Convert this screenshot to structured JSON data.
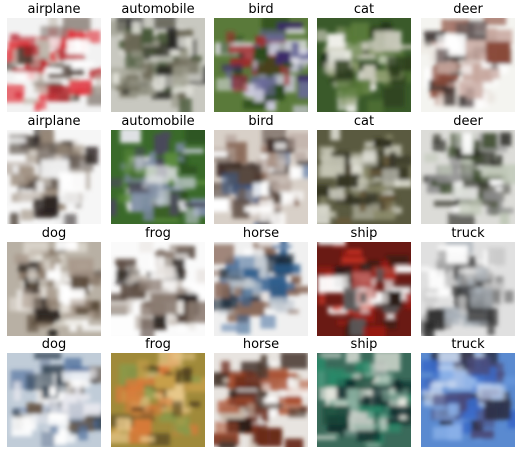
{
  "grid": {
    "rows": 4,
    "cols": 5,
    "cells": [
      {
        "label": "airplane",
        "bg": "#f2f2f2",
        "palette": [
          "#b41c24",
          "#e0303a",
          "#4a3a30",
          "#8a8078",
          "#ffffff",
          "#c0b8ac"
        ]
      },
      {
        "label": "automobile",
        "bg": "#c8c8c0",
        "palette": [
          "#3a3a32",
          "#6e6a58",
          "#9a9a8a",
          "#e8e8e0",
          "#4a5a3a",
          "#2a2a26"
        ]
      },
      {
        "label": "bird",
        "bg": "#5a7a3a",
        "palette": [
          "#3a2a6a",
          "#c8c8d8",
          "#a02a2a",
          "#2a4a1a",
          "#e8e8f0",
          "#6a6a9a"
        ]
      },
      {
        "label": "cat",
        "bg": "#3a5a2a",
        "palette": [
          "#1a2a14",
          "#f0f0ea",
          "#5a7a3a",
          "#8a9a6a",
          "#2a3a1a",
          "#c8c8b8"
        ]
      },
      {
        "label": "deer",
        "bg": "#f4f4f0",
        "palette": [
          "#2a2220",
          "#8a4a3a",
          "#ffffff",
          "#5a5050",
          "#c8a8a0",
          "#ebe6e0"
        ]
      },
      {
        "label": "airplane",
        "bg": "#f6f6f6",
        "palette": [
          "#ffffff",
          "#9a8a7a",
          "#2a2220",
          "#c8c0b8",
          "#eeeeee",
          "#6a6058"
        ]
      },
      {
        "label": "automobile",
        "bg": "#3a6a2a",
        "palette": [
          "#7a8aa0",
          "#e8e8ee",
          "#2a4a1a",
          "#5a8a3a",
          "#4a4a5a",
          "#c0c8d0"
        ]
      },
      {
        "label": "bird",
        "bg": "#d8d0c8",
        "palette": [
          "#ffffff",
          "#3a2a24",
          "#8a6a5a",
          "#3a5a8a",
          "#b8a8a0",
          "#5a4a40"
        ]
      },
      {
        "label": "cat",
        "bg": "#5a5a40",
        "palette": [
          "#2a2a1a",
          "#c8c8b8",
          "#8a8a6a",
          "#3a3a2a",
          "#e8e8e0",
          "#6a5a3a"
        ]
      },
      {
        "label": "deer",
        "bg": "#dcdcd8",
        "palette": [
          "#ffffff",
          "#3a4a2a",
          "#8a8a8a",
          "#5a5a50",
          "#c0c8b8",
          "#2a2a24"
        ]
      },
      {
        "label": "dog",
        "bg": "#b8b0a4",
        "palette": [
          "#5a4a3a",
          "#e8e4dc",
          "#2a2420",
          "#8a7a6a",
          "#ffffff",
          "#a8988a"
        ]
      },
      {
        "label": "frog",
        "bg": "#fafafa",
        "palette": [
          "#2a2420",
          "#ffffff",
          "#5a4a40",
          "#e8e4e0",
          "#8a7a70",
          "#c8c0b8"
        ]
      },
      {
        "label": "horse",
        "bg": "#f0f0f0",
        "palette": [
          "#2a5a8a",
          "#ffffff",
          "#1a2a3a",
          "#6a8ab0",
          "#c0c8d0",
          "#8a6a5a"
        ]
      },
      {
        "label": "ship",
        "bg": "#6a1a14",
        "palette": [
          "#a01a14",
          "#e8e8e8",
          "#2a1a14",
          "#d83a2a",
          "#5a5a5a",
          "#ffffff"
        ]
      },
      {
        "label": "truck",
        "bg": "#e0e0e0",
        "palette": [
          "#ffffff",
          "#4a4a4a",
          "#8a8a8a",
          "#a8b0b8",
          "#2a2a2a",
          "#c8c8c8"
        ]
      },
      {
        "label": "dog",
        "bg": "#c0ccd8",
        "palette": [
          "#4a6a9a",
          "#e8e8ee",
          "#2a3a4a",
          "#8a9ab0",
          "#ffffff",
          "#6a5a4a"
        ]
      },
      {
        "label": "frog",
        "bg": "#a08a3a",
        "palette": [
          "#c8a04a",
          "#6a5a2a",
          "#d87a3a",
          "#8a9a4a",
          "#e8c88a",
          "#4a3a1a"
        ]
      },
      {
        "label": "horse",
        "bg": "#e8e4e0",
        "palette": [
          "#2a1a14",
          "#6a2a1a",
          "#ffffff",
          "#a84a2a",
          "#c8b8a8",
          "#4a3a30"
        ]
      },
      {
        "label": "ship",
        "bg": "#3a6a5a",
        "palette": [
          "#1a4a3a",
          "#e8e8e0",
          "#2a8a6a",
          "#0a2a2a",
          "#8ab0a0",
          "#c8d0c8"
        ]
      },
      {
        "label": "truck",
        "bg": "#5a8ad0",
        "palette": [
          "#3a6ac8",
          "#8ab0e8",
          "#2a2a3a",
          "#c8d8f0",
          "#4a4a7a",
          "#6a9ae0"
        ]
      }
    ]
  }
}
